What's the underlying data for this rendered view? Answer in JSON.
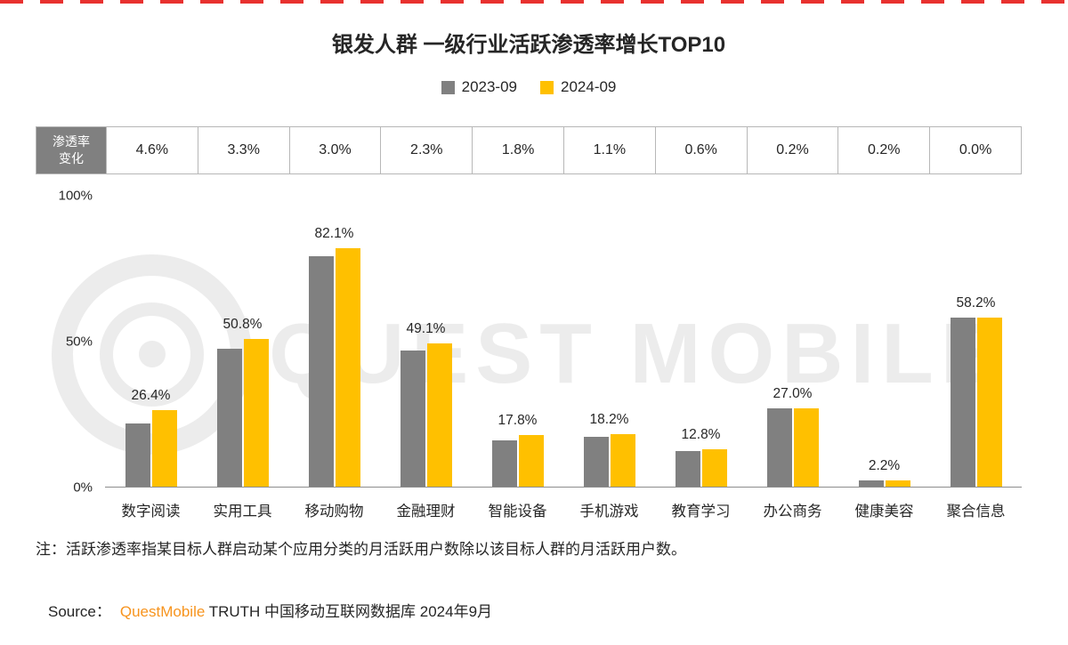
{
  "colors": {
    "bar_gray": "#808080",
    "bar_yellow": "#FFC000",
    "brand_orange": "#F7941E",
    "edge_red": "#E8312F"
  },
  "page": {
    "title": "银发人群 一级行业活跃渗透率增长TOP10",
    "watermark": "QUEST MOBILE",
    "note": "注：活跃渗透率指某目标人群启动某个应用分类的月活跃用户数除以该目标人群的月活跃用户数。",
    "source_prefix": "Source：",
    "source_brand": "QuestMobile",
    "source_suffix": " TRUTH 中国移动互联网数据库 2024年9月"
  },
  "legend": [
    {
      "label": "2023-09",
      "color": "#808080"
    },
    {
      "label": "2024-09",
      "color": "#FFC000"
    }
  ],
  "change_row": {
    "header": "渗透率\n变化",
    "values": [
      "4.6%",
      "3.3%",
      "3.0%",
      "2.3%",
      "1.8%",
      "1.1%",
      "0.6%",
      "0.2%",
      "0.2%",
      "0.0%"
    ]
  },
  "chart_data": {
    "type": "bar",
    "title": "银发人群 一级行业活跃渗透率增长TOP10",
    "categories": [
      "数字阅读",
      "实用工具",
      "移动购物",
      "金融理财",
      "智能设备",
      "手机游戏",
      "教育学习",
      "办公商务",
      "健康美容",
      "聚合信息"
    ],
    "series": [
      {
        "name": "2023-09",
        "color": "#808080",
        "values": [
          21.8,
          47.5,
          79.1,
          46.8,
          16.0,
          17.1,
          12.2,
          26.8,
          2.0,
          58.2
        ]
      },
      {
        "name": "2024-09",
        "color": "#FFC000",
        "values": [
          26.4,
          50.8,
          82.1,
          49.1,
          17.8,
          18.2,
          12.8,
          27.0,
          2.2,
          58.2
        ]
      }
    ],
    "value_labels": [
      "26.4%",
      "50.8%",
      "82.1%",
      "49.1%",
      "17.8%",
      "18.2%",
      "12.8%",
      "27.0%",
      "2.2%",
      "58.2%"
    ],
    "change_values": [
      "4.6%",
      "3.3%",
      "3.0%",
      "2.3%",
      "1.8%",
      "1.1%",
      "0.6%",
      "0.2%",
      "0.2%",
      "0.0%"
    ],
    "ylim": [
      0,
      100
    ],
    "yticks": [
      "100%",
      "50%",
      "0%"
    ],
    "legend_position": "top",
    "grid": false
  }
}
